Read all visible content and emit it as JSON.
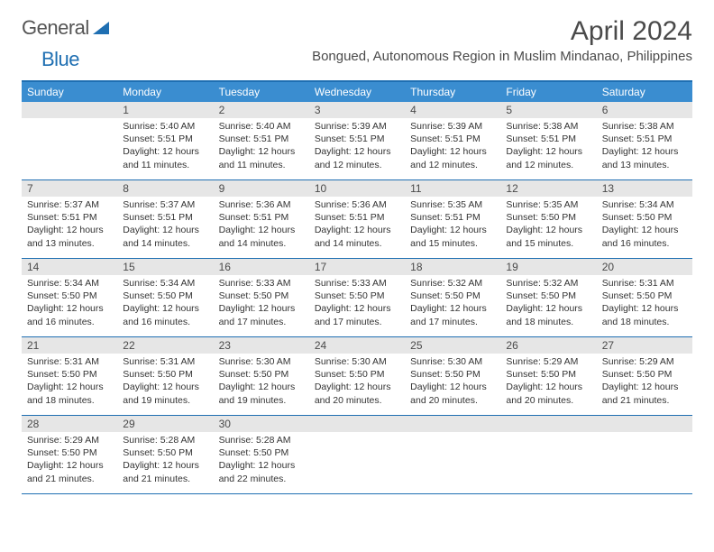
{
  "brand": {
    "part1": "General",
    "part2": "Blue"
  },
  "title": "April 2024",
  "location": "Bongued, Autonomous Region in Muslim Mindanao, Philippines",
  "weekdays": [
    "Sunday",
    "Monday",
    "Tuesday",
    "Wednesday",
    "Thursday",
    "Friday",
    "Saturday"
  ],
  "colors": {
    "header_bar": "#3a8dd0",
    "rule": "#1f6fb2",
    "daynum_bg": "#e6e6e6",
    "text": "#333333"
  },
  "weeks": [
    [
      {
        "blank": true
      },
      {
        "day": "1",
        "sunrise": "Sunrise: 5:40 AM",
        "sunset": "Sunset: 5:51 PM",
        "daylight1": "Daylight: 12 hours",
        "daylight2": "and 11 minutes."
      },
      {
        "day": "2",
        "sunrise": "Sunrise: 5:40 AM",
        "sunset": "Sunset: 5:51 PM",
        "daylight1": "Daylight: 12 hours",
        "daylight2": "and 11 minutes."
      },
      {
        "day": "3",
        "sunrise": "Sunrise: 5:39 AM",
        "sunset": "Sunset: 5:51 PM",
        "daylight1": "Daylight: 12 hours",
        "daylight2": "and 12 minutes."
      },
      {
        "day": "4",
        "sunrise": "Sunrise: 5:39 AM",
        "sunset": "Sunset: 5:51 PM",
        "daylight1": "Daylight: 12 hours",
        "daylight2": "and 12 minutes."
      },
      {
        "day": "5",
        "sunrise": "Sunrise: 5:38 AM",
        "sunset": "Sunset: 5:51 PM",
        "daylight1": "Daylight: 12 hours",
        "daylight2": "and 12 minutes."
      },
      {
        "day": "6",
        "sunrise": "Sunrise: 5:38 AM",
        "sunset": "Sunset: 5:51 PM",
        "daylight1": "Daylight: 12 hours",
        "daylight2": "and 13 minutes."
      }
    ],
    [
      {
        "day": "7",
        "sunrise": "Sunrise: 5:37 AM",
        "sunset": "Sunset: 5:51 PM",
        "daylight1": "Daylight: 12 hours",
        "daylight2": "and 13 minutes."
      },
      {
        "day": "8",
        "sunrise": "Sunrise: 5:37 AM",
        "sunset": "Sunset: 5:51 PM",
        "daylight1": "Daylight: 12 hours",
        "daylight2": "and 14 minutes."
      },
      {
        "day": "9",
        "sunrise": "Sunrise: 5:36 AM",
        "sunset": "Sunset: 5:51 PM",
        "daylight1": "Daylight: 12 hours",
        "daylight2": "and 14 minutes."
      },
      {
        "day": "10",
        "sunrise": "Sunrise: 5:36 AM",
        "sunset": "Sunset: 5:51 PM",
        "daylight1": "Daylight: 12 hours",
        "daylight2": "and 14 minutes."
      },
      {
        "day": "11",
        "sunrise": "Sunrise: 5:35 AM",
        "sunset": "Sunset: 5:51 PM",
        "daylight1": "Daylight: 12 hours",
        "daylight2": "and 15 minutes."
      },
      {
        "day": "12",
        "sunrise": "Sunrise: 5:35 AM",
        "sunset": "Sunset: 5:50 PM",
        "daylight1": "Daylight: 12 hours",
        "daylight2": "and 15 minutes."
      },
      {
        "day": "13",
        "sunrise": "Sunrise: 5:34 AM",
        "sunset": "Sunset: 5:50 PM",
        "daylight1": "Daylight: 12 hours",
        "daylight2": "and 16 minutes."
      }
    ],
    [
      {
        "day": "14",
        "sunrise": "Sunrise: 5:34 AM",
        "sunset": "Sunset: 5:50 PM",
        "daylight1": "Daylight: 12 hours",
        "daylight2": "and 16 minutes."
      },
      {
        "day": "15",
        "sunrise": "Sunrise: 5:34 AM",
        "sunset": "Sunset: 5:50 PM",
        "daylight1": "Daylight: 12 hours",
        "daylight2": "and 16 minutes."
      },
      {
        "day": "16",
        "sunrise": "Sunrise: 5:33 AM",
        "sunset": "Sunset: 5:50 PM",
        "daylight1": "Daylight: 12 hours",
        "daylight2": "and 17 minutes."
      },
      {
        "day": "17",
        "sunrise": "Sunrise: 5:33 AM",
        "sunset": "Sunset: 5:50 PM",
        "daylight1": "Daylight: 12 hours",
        "daylight2": "and 17 minutes."
      },
      {
        "day": "18",
        "sunrise": "Sunrise: 5:32 AM",
        "sunset": "Sunset: 5:50 PM",
        "daylight1": "Daylight: 12 hours",
        "daylight2": "and 17 minutes."
      },
      {
        "day": "19",
        "sunrise": "Sunrise: 5:32 AM",
        "sunset": "Sunset: 5:50 PM",
        "daylight1": "Daylight: 12 hours",
        "daylight2": "and 18 minutes."
      },
      {
        "day": "20",
        "sunrise": "Sunrise: 5:31 AM",
        "sunset": "Sunset: 5:50 PM",
        "daylight1": "Daylight: 12 hours",
        "daylight2": "and 18 minutes."
      }
    ],
    [
      {
        "day": "21",
        "sunrise": "Sunrise: 5:31 AM",
        "sunset": "Sunset: 5:50 PM",
        "daylight1": "Daylight: 12 hours",
        "daylight2": "and 18 minutes."
      },
      {
        "day": "22",
        "sunrise": "Sunrise: 5:31 AM",
        "sunset": "Sunset: 5:50 PM",
        "daylight1": "Daylight: 12 hours",
        "daylight2": "and 19 minutes."
      },
      {
        "day": "23",
        "sunrise": "Sunrise: 5:30 AM",
        "sunset": "Sunset: 5:50 PM",
        "daylight1": "Daylight: 12 hours",
        "daylight2": "and 19 minutes."
      },
      {
        "day": "24",
        "sunrise": "Sunrise: 5:30 AM",
        "sunset": "Sunset: 5:50 PM",
        "daylight1": "Daylight: 12 hours",
        "daylight2": "and 20 minutes."
      },
      {
        "day": "25",
        "sunrise": "Sunrise: 5:30 AM",
        "sunset": "Sunset: 5:50 PM",
        "daylight1": "Daylight: 12 hours",
        "daylight2": "and 20 minutes."
      },
      {
        "day": "26",
        "sunrise": "Sunrise: 5:29 AM",
        "sunset": "Sunset: 5:50 PM",
        "daylight1": "Daylight: 12 hours",
        "daylight2": "and 20 minutes."
      },
      {
        "day": "27",
        "sunrise": "Sunrise: 5:29 AM",
        "sunset": "Sunset: 5:50 PM",
        "daylight1": "Daylight: 12 hours",
        "daylight2": "and 21 minutes."
      }
    ],
    [
      {
        "day": "28",
        "sunrise": "Sunrise: 5:29 AM",
        "sunset": "Sunset: 5:50 PM",
        "daylight1": "Daylight: 12 hours",
        "daylight2": "and 21 minutes."
      },
      {
        "day": "29",
        "sunrise": "Sunrise: 5:28 AM",
        "sunset": "Sunset: 5:50 PM",
        "daylight1": "Daylight: 12 hours",
        "daylight2": "and 21 minutes."
      },
      {
        "day": "30",
        "sunrise": "Sunrise: 5:28 AM",
        "sunset": "Sunset: 5:50 PM",
        "daylight1": "Daylight: 12 hours",
        "daylight2": "and 22 minutes."
      },
      {
        "blank": true
      },
      {
        "blank": true
      },
      {
        "blank": true
      },
      {
        "blank": true
      }
    ]
  ]
}
